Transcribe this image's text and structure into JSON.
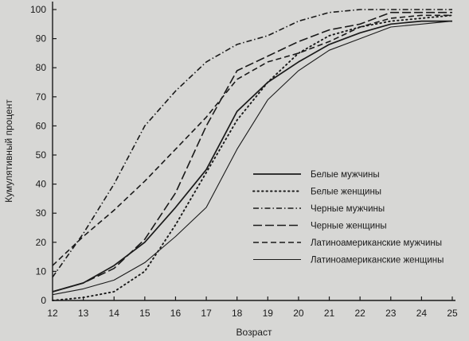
{
  "chart_data": {
    "type": "line",
    "title": "",
    "xlabel": "Возраст",
    "ylabel": "Кумулятивный процент",
    "x": [
      12,
      13,
      14,
      15,
      16,
      17,
      18,
      19,
      20,
      21,
      22,
      23,
      24,
      25
    ],
    "xlim": [
      12,
      25
    ],
    "ylim": [
      0,
      100
    ],
    "xticks": [
      "12",
      "13",
      "14",
      "15",
      "16",
      "17",
      "18",
      "19",
      "20",
      "21",
      "22",
      "23",
      "24",
      "25"
    ],
    "yticks": [
      "0",
      "10",
      "20",
      "30",
      "40",
      "50",
      "60",
      "70",
      "80",
      "90",
      "100"
    ],
    "grid": false,
    "legend_position": "right",
    "colors": {
      "line": "#1a1a1a",
      "background": "#d7d7d5"
    },
    "series": [
      {
        "name": "Белые мужчины",
        "style": "solid",
        "values": [
          3,
          6,
          12,
          20,
          32,
          45,
          65,
          75,
          82,
          88,
          92,
          95,
          96,
          96
        ]
      },
      {
        "name": "Белые женщины",
        "style": "dotted",
        "values": [
          0,
          1,
          3,
          10,
          26,
          44,
          62,
          75,
          85,
          91,
          94,
          96,
          97,
          98
        ]
      },
      {
        "name": "Черные мужчины",
        "style": "dash-dot",
        "values": [
          8,
          23,
          40,
          60,
          72,
          82,
          88,
          91,
          96,
          99,
          100,
          100,
          100,
          100
        ]
      },
      {
        "name": "Черные женщины",
        "style": "long-dash",
        "values": [
          3,
          6,
          11,
          21,
          37,
          60,
          79,
          84,
          89,
          93,
          95,
          99,
          99,
          99
        ]
      },
      {
        "name": "Латиноамериканские мужчины",
        "style": "dashed",
        "values": [
          12,
          22,
          31,
          41,
          52,
          63,
          76,
          82,
          85,
          89,
          94,
          97,
          98,
          98
        ]
      },
      {
        "name": "Латиноамериканские женщины",
        "style": "thin-solid",
        "values": [
          2,
          4,
          7,
          13,
          22,
          32,
          52,
          69,
          79,
          86,
          90,
          94,
          95,
          96
        ]
      }
    ]
  }
}
